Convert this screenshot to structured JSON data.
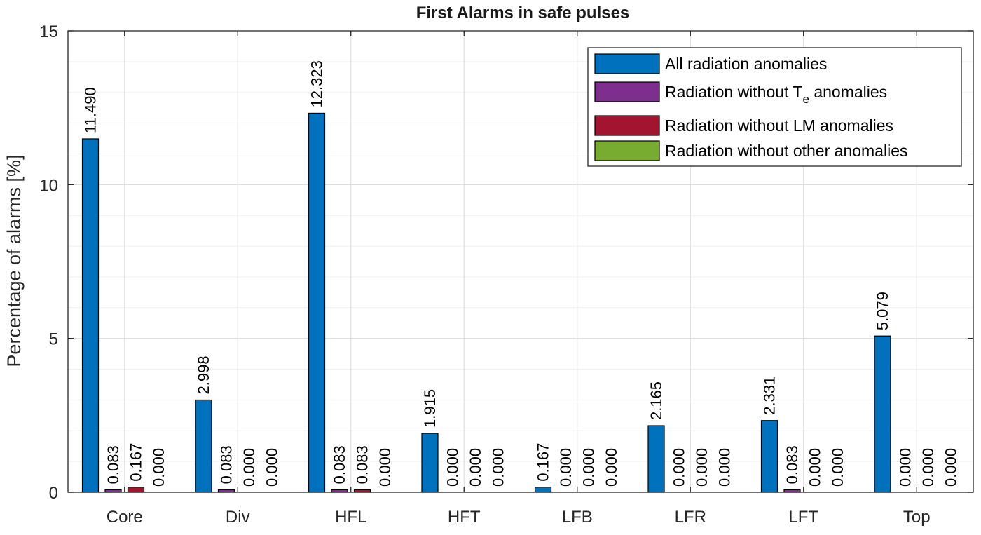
{
  "chart_data": {
    "type": "bar",
    "title": "First Alarms in safe pulses",
    "xlabel": "",
    "ylabel": "Percentage of alarms [%]",
    "ylim": [
      0,
      15
    ],
    "yticks": [
      "0",
      "5",
      "10",
      "15"
    ],
    "categories": [
      "Core",
      "Div",
      "HFL",
      "HFT",
      "LFB",
      "LFR",
      "LFT",
      "Top"
    ],
    "series": [
      {
        "name": "All radiation anomalies",
        "color": "#0072BD",
        "values": [
          11.49,
          2.998,
          12.323,
          1.915,
          0.167,
          2.165,
          2.331,
          5.079
        ],
        "labels": [
          "11.490",
          "2.998",
          "12.323",
          "1.915",
          "0.167",
          "2.165",
          "2.331",
          "5.079"
        ]
      },
      {
        "name": "Radiation without T",
        "name_sub": "e",
        "name_suffix": " anomalies",
        "color": "#7E2F8E",
        "values": [
          0.083,
          0.083,
          0.083,
          0.0,
          0.0,
          0.0,
          0.083,
          0.0
        ],
        "labels": [
          "0.083",
          "0.083",
          "0.083",
          "0.000",
          "0.000",
          "0.000",
          "0.083",
          "0.000"
        ]
      },
      {
        "name": "Radiation without LM anomalies",
        "color": "#A2142F",
        "values": [
          0.167,
          0.0,
          0.083,
          0.0,
          0.0,
          0.0,
          0.0,
          0.0
        ],
        "labels": [
          "0.167",
          "0.000",
          "0.083",
          "0.000",
          "0.000",
          "0.000",
          "0.000",
          "0.000"
        ]
      },
      {
        "name": "Radiation without other anomalies",
        "color": "#77AC30",
        "values": [
          0.0,
          0.0,
          0.0,
          0.0,
          0.0,
          0.0,
          0.0,
          0.0
        ],
        "labels": [
          "0.000",
          "0.000",
          "0.000",
          "0.000",
          "0.000",
          "0.000",
          "0.000",
          "0.000"
        ]
      }
    ],
    "grid": true,
    "minor_grid": true,
    "legend_position": "top-right"
  }
}
